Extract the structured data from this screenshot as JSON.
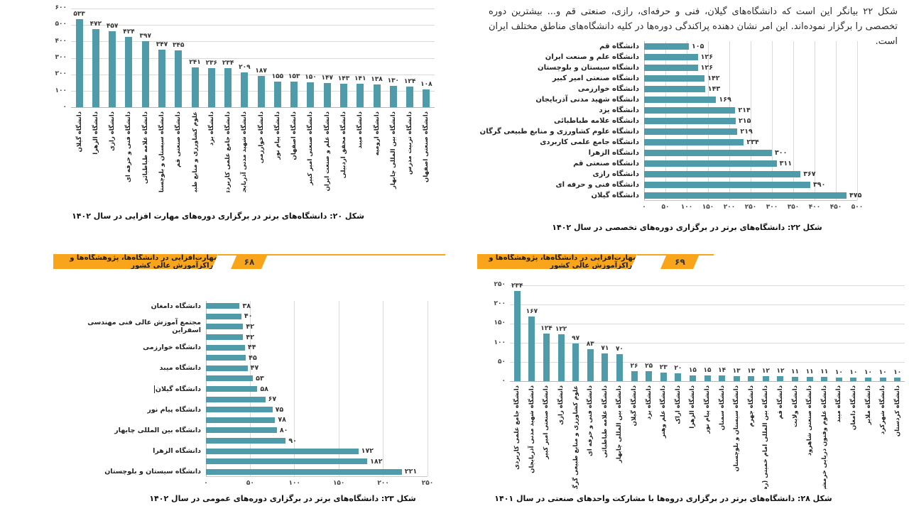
{
  "colors": {
    "bar": "#509baa",
    "banner": "#F9A51B",
    "grid": "#d9d9d9"
  },
  "banners": {
    "left": {
      "title": "مهارت‌افزایی در دانشگاه‌ها، پژوهشگاه‌ها و مراکزآموزش عالی کشور",
      "page": "۶۸"
    },
    "right": {
      "title": "مهارت‌افزایی در دانشگاه‌ها، پژوهشگاه‌ها و مراکزآموزش عالی کشور",
      "page": "۶۹"
    }
  },
  "paragraph": "شکل ۲۲ بیانگر این است که دانشگاه‌های گیلان، فنی و حرفه‌ای، رازی، صنعتی قم و... بیشترین دوره تخصصی را برگزار نموده‌اند. این امر نشان دهنده پراکندگی دوره‌ها در کلیه دانشگاه‌های مناطق مختلف ایران است.",
  "chart_data": [
    {
      "id": "fig20",
      "type": "bar",
      "orientation": "vertical",
      "caption": "شکل ۲۰: دانشگاه‌های برتر در برگزاری دوره‌های مهارت افزایی در سال ۱۴۰۲",
      "categories": [
        "دانشگاه گیلان",
        "دانشگاه الزهرا",
        "دانشگاه رازی",
        "دانشگاه فنی و حرفه ای",
        "دانشگاه علامه طباطبائی",
        "دانشگاه سیستان و بلوچستان",
        "دانشگاه صنعتی قم",
        "علوم کشاورزی و منابع طبیعی گرگان",
        "دانشگاه یزد",
        "دانشگاه جامع علمی کاربردی",
        "دانشگاه شهید مدنی آذربایجان",
        "دانشگاه خوارزمی",
        "دانشگاه پیام نور",
        "دانشگاه اصفهان",
        "دانشگاه صنعتی امیر کبیر",
        "دانشگاه علم و صنعت ایران",
        "دانشگاه محقق اردبیلی",
        "دانشگاه میبد",
        "دانشگاه ارومیه",
        "دانشگاه بین المللی چابهار",
        "دانشگاه تربیت مدرس",
        "دانشگاه صنعتی اصفهان"
      ],
      "values": [
        533,
        472,
        457,
        424,
        397,
        347,
        345,
        241,
        236,
        234,
        209,
        187,
        155,
        153,
        150,
        147,
        143,
        141,
        138,
        130,
        124,
        108
      ],
      "ylim": [
        0,
        600
      ],
      "yticks": [
        0,
        100,
        200,
        300,
        400,
        500,
        600
      ],
      "grid": true,
      "legend": false
    },
    {
      "id": "fig22",
      "type": "bar",
      "orientation": "horizontal",
      "caption": "شکل ۲۲: دانشگاه‌های برتر در برگزاری دوره‌های تخصصی در سال ۱۴۰۲",
      "categories": [
        "دانشگاه قم",
        "دانشگاه علم و صنعت ایران",
        "دانشگاه سیستان و بلوچستان",
        "دانشگاه صنعتی امیر کبیر",
        "دانشگاه خوارزمی",
        "دانشگاه شهید مدنی آذربایجان",
        "دانشگاه یزد",
        "دانشگاه علامه طباطبائی",
        "دانشگاه علوم کشاورزی و منابع طبیعی گرگان",
        "دانشگاه جامع علمی کاربردی",
        "دانشگاه الزهرا",
        "دانشگاه صنعتی قم",
        "دانشگاه رازی",
        "دانشگاه فنی و حرفه ای",
        "دانشگاه گیلان"
      ],
      "values": [
        105,
        126,
        126,
        142,
        143,
        169,
        214,
        215,
        219,
        234,
        300,
        311,
        367,
        390,
        475
      ],
      "xlim": [
        0,
        500
      ],
      "xticks": [
        0,
        50,
        100,
        150,
        200,
        250,
        300,
        350,
        400,
        450,
        500
      ],
      "grid": true,
      "legend": false
    },
    {
      "id": "fig23",
      "type": "bar",
      "orientation": "horizontal",
      "caption": "شکل ۲۳: دانشگاه‌های برتر در برگزاری دوره‌های عمومی در سال ۱۴۰۲",
      "categories": [
        "دانشگاه دامغان",
        "",
        "مجتمع آموزش عالی فنی مهندسی\nاسفراین",
        "",
        "دانشگاه خوارزمی",
        "",
        "دانشگاه میبد",
        "",
        "دانشگاه گیلان",
        "",
        "دانشگاه پیام نور",
        "",
        "دانشگاه بین المللی چابهار",
        "",
        "دانشگاه الزهرا",
        "",
        "دانشگاه سیستان و بلوچستان"
      ],
      "values": [
        38,
        40,
        42,
        42,
        44,
        45,
        47,
        53,
        58,
        67,
        75,
        78,
        80,
        90,
        172,
        182,
        221
      ],
      "caret_row": 8,
      "xlim": [
        0,
        250
      ],
      "xticks": [
        0,
        50,
        100,
        150,
        200,
        250
      ],
      "grid": true,
      "legend": false
    },
    {
      "id": "fig28",
      "type": "bar",
      "orientation": "vertical",
      "caption": "شکل ۲۸: دانشگاه‌های برتر در برگزاری دروه‌ها با مشارکت واحدهای صنعتی در سال ۱۴۰۱",
      "categories": [
        "دانشگاه جامع علمی کاربردی",
        "دانشگاه شهید مدنی آذربایجان",
        "دانشگاه صنعتی امیر کبیر",
        "دانشگاه رازی",
        "علوم کشاورزی و منابع طبیعی گرگان",
        "دانشگاه فنی و حرفه ای",
        "دانشگاه علامه طباطبائی",
        "دانشگاه بین المللی چابهار",
        "دانشگاه گیلان",
        "دانشگاه یزد",
        "دانشگاه علم وهنر",
        "دانشگاه اراک",
        "دانشگاه الزهرا",
        "دانشگاه پیام نور",
        "دانشگاه سمنان",
        "دانشگاه سیستان و بلوچستان",
        "دانشگاه جهرم",
        "دانشگاه بین المللی امام خمینی (ره)",
        "دانشگاه قم",
        "دانشگاه ولایت",
        "دانشگاه صنعتی شاهرود",
        "دانشگاه علوم وفنون دریایی خرمشهر",
        "دانشگاه میبد",
        "دانشگاه دامغان",
        "دانشگاه ملایر",
        "دانشگاه شهرکرد",
        "دانشگاه کردستان"
      ],
      "values": [
        234,
        167,
        124,
        122,
        97,
        83,
        71,
        70,
        26,
        25,
        23,
        20,
        15,
        15,
        14,
        13,
        13,
        12,
        12,
        11,
        11,
        11,
        10,
        10,
        10,
        10,
        10
      ],
      "ylim": [
        0,
        250
      ],
      "yticks": [
        0,
        50,
        100,
        150,
        200,
        250
      ],
      "grid": true,
      "legend": false
    }
  ]
}
